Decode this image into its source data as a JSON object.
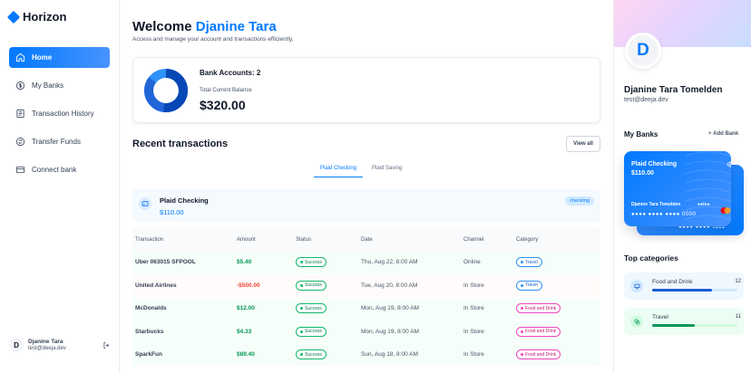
{
  "app": {
    "name": "Horizon"
  },
  "sidebar": {
    "items": [
      {
        "label": "Home",
        "icon": "home-icon",
        "active": true
      },
      {
        "label": "My Banks",
        "icon": "dollar-circle-icon"
      },
      {
        "label": "Transaction History",
        "icon": "receipt-icon"
      },
      {
        "label": "Transfer Funds",
        "icon": "transfer-icon"
      },
      {
        "label": "Connect bank",
        "icon": "bank-card-icon"
      }
    ],
    "user": {
      "initial": "D",
      "name": "Djanine Tara",
      "email": "test@deeja.dev"
    }
  },
  "header": {
    "greeting": "Welcome",
    "user_first": "Djanine Tara",
    "subtitle": "Access and manage your account and transactions efficiently."
  },
  "balance": {
    "accounts_label": "Bank Accounts: 2",
    "total_label": "Total Current Balance",
    "total_value": "$320.00",
    "donut_colors": [
      "#0747b6",
      "#2265d8",
      "#2f91fa"
    ]
  },
  "recent": {
    "title": "Recent transactions",
    "view_all": "View all",
    "tabs": [
      "Plaid Checking",
      "Plaid Saving"
    ],
    "active_tab": 0,
    "account": {
      "name": "Plaid Checking",
      "balance": "$110.00",
      "badge": "checking"
    },
    "columns": [
      "Transaction",
      "Amount",
      "Status",
      "Date",
      "Channel",
      "Category"
    ],
    "rows": [
      {
        "name": "Uber 063015 SFPOOL",
        "amount": "$5.40",
        "status": "Success",
        "date": "Thu, Aug 22, 8:00 AM",
        "channel": "Online",
        "category": "Travel",
        "sign": "pos",
        "cat": "travel"
      },
      {
        "name": "United Airlines",
        "amount": "-$500.00",
        "status": "Success",
        "date": "Tue, Aug 20, 8:00 AM",
        "channel": "In Store",
        "category": "Travel",
        "sign": "neg",
        "cat": "travel"
      },
      {
        "name": "McDonalds",
        "amount": "$12.00",
        "status": "Success",
        "date": "Mon, Aug 19, 8:00 AM",
        "channel": "In Store",
        "category": "Food and Drink",
        "sign": "pos",
        "cat": "food"
      },
      {
        "name": "Starbucks",
        "amount": "$4.33",
        "status": "Success",
        "date": "Mon, Aug 19, 8:00 AM",
        "channel": "In Store",
        "category": "Food and Drink",
        "sign": "pos",
        "cat": "food"
      },
      {
        "name": "SparkFun",
        "amount": "$89.40",
        "status": "Success",
        "date": "Sun, Aug 18, 8:00 AM",
        "channel": "In Store",
        "category": "Food and Drink",
        "sign": "pos",
        "cat": "food"
      }
    ]
  },
  "profile": {
    "initial": "D",
    "full_name": "Djanine Tara Tomelden",
    "email": "test@deeja.dev",
    "my_banks_title": "My Banks",
    "add_bank": "Add Bank",
    "card": {
      "bank": "Plaid Checking",
      "balance": "$110.00",
      "holder": "Djanine Tara Tomelden",
      "expiry": "●●/●●",
      "number": "●●●● ●●●● ●●●● 0000",
      "back_number": "1111"
    },
    "top_categories_title": "Top categories",
    "categories": [
      {
        "name": "Food and Drink",
        "count": "12",
        "progress": 0.7,
        "icon": "monitor-icon"
      },
      {
        "name": "Travel",
        "count": "11",
        "progress": 0.5,
        "icon": "coins-icon"
      }
    ]
  },
  "colors": {
    "accent": "#0179fe",
    "success": "#039855",
    "danger": "#f04438"
  }
}
